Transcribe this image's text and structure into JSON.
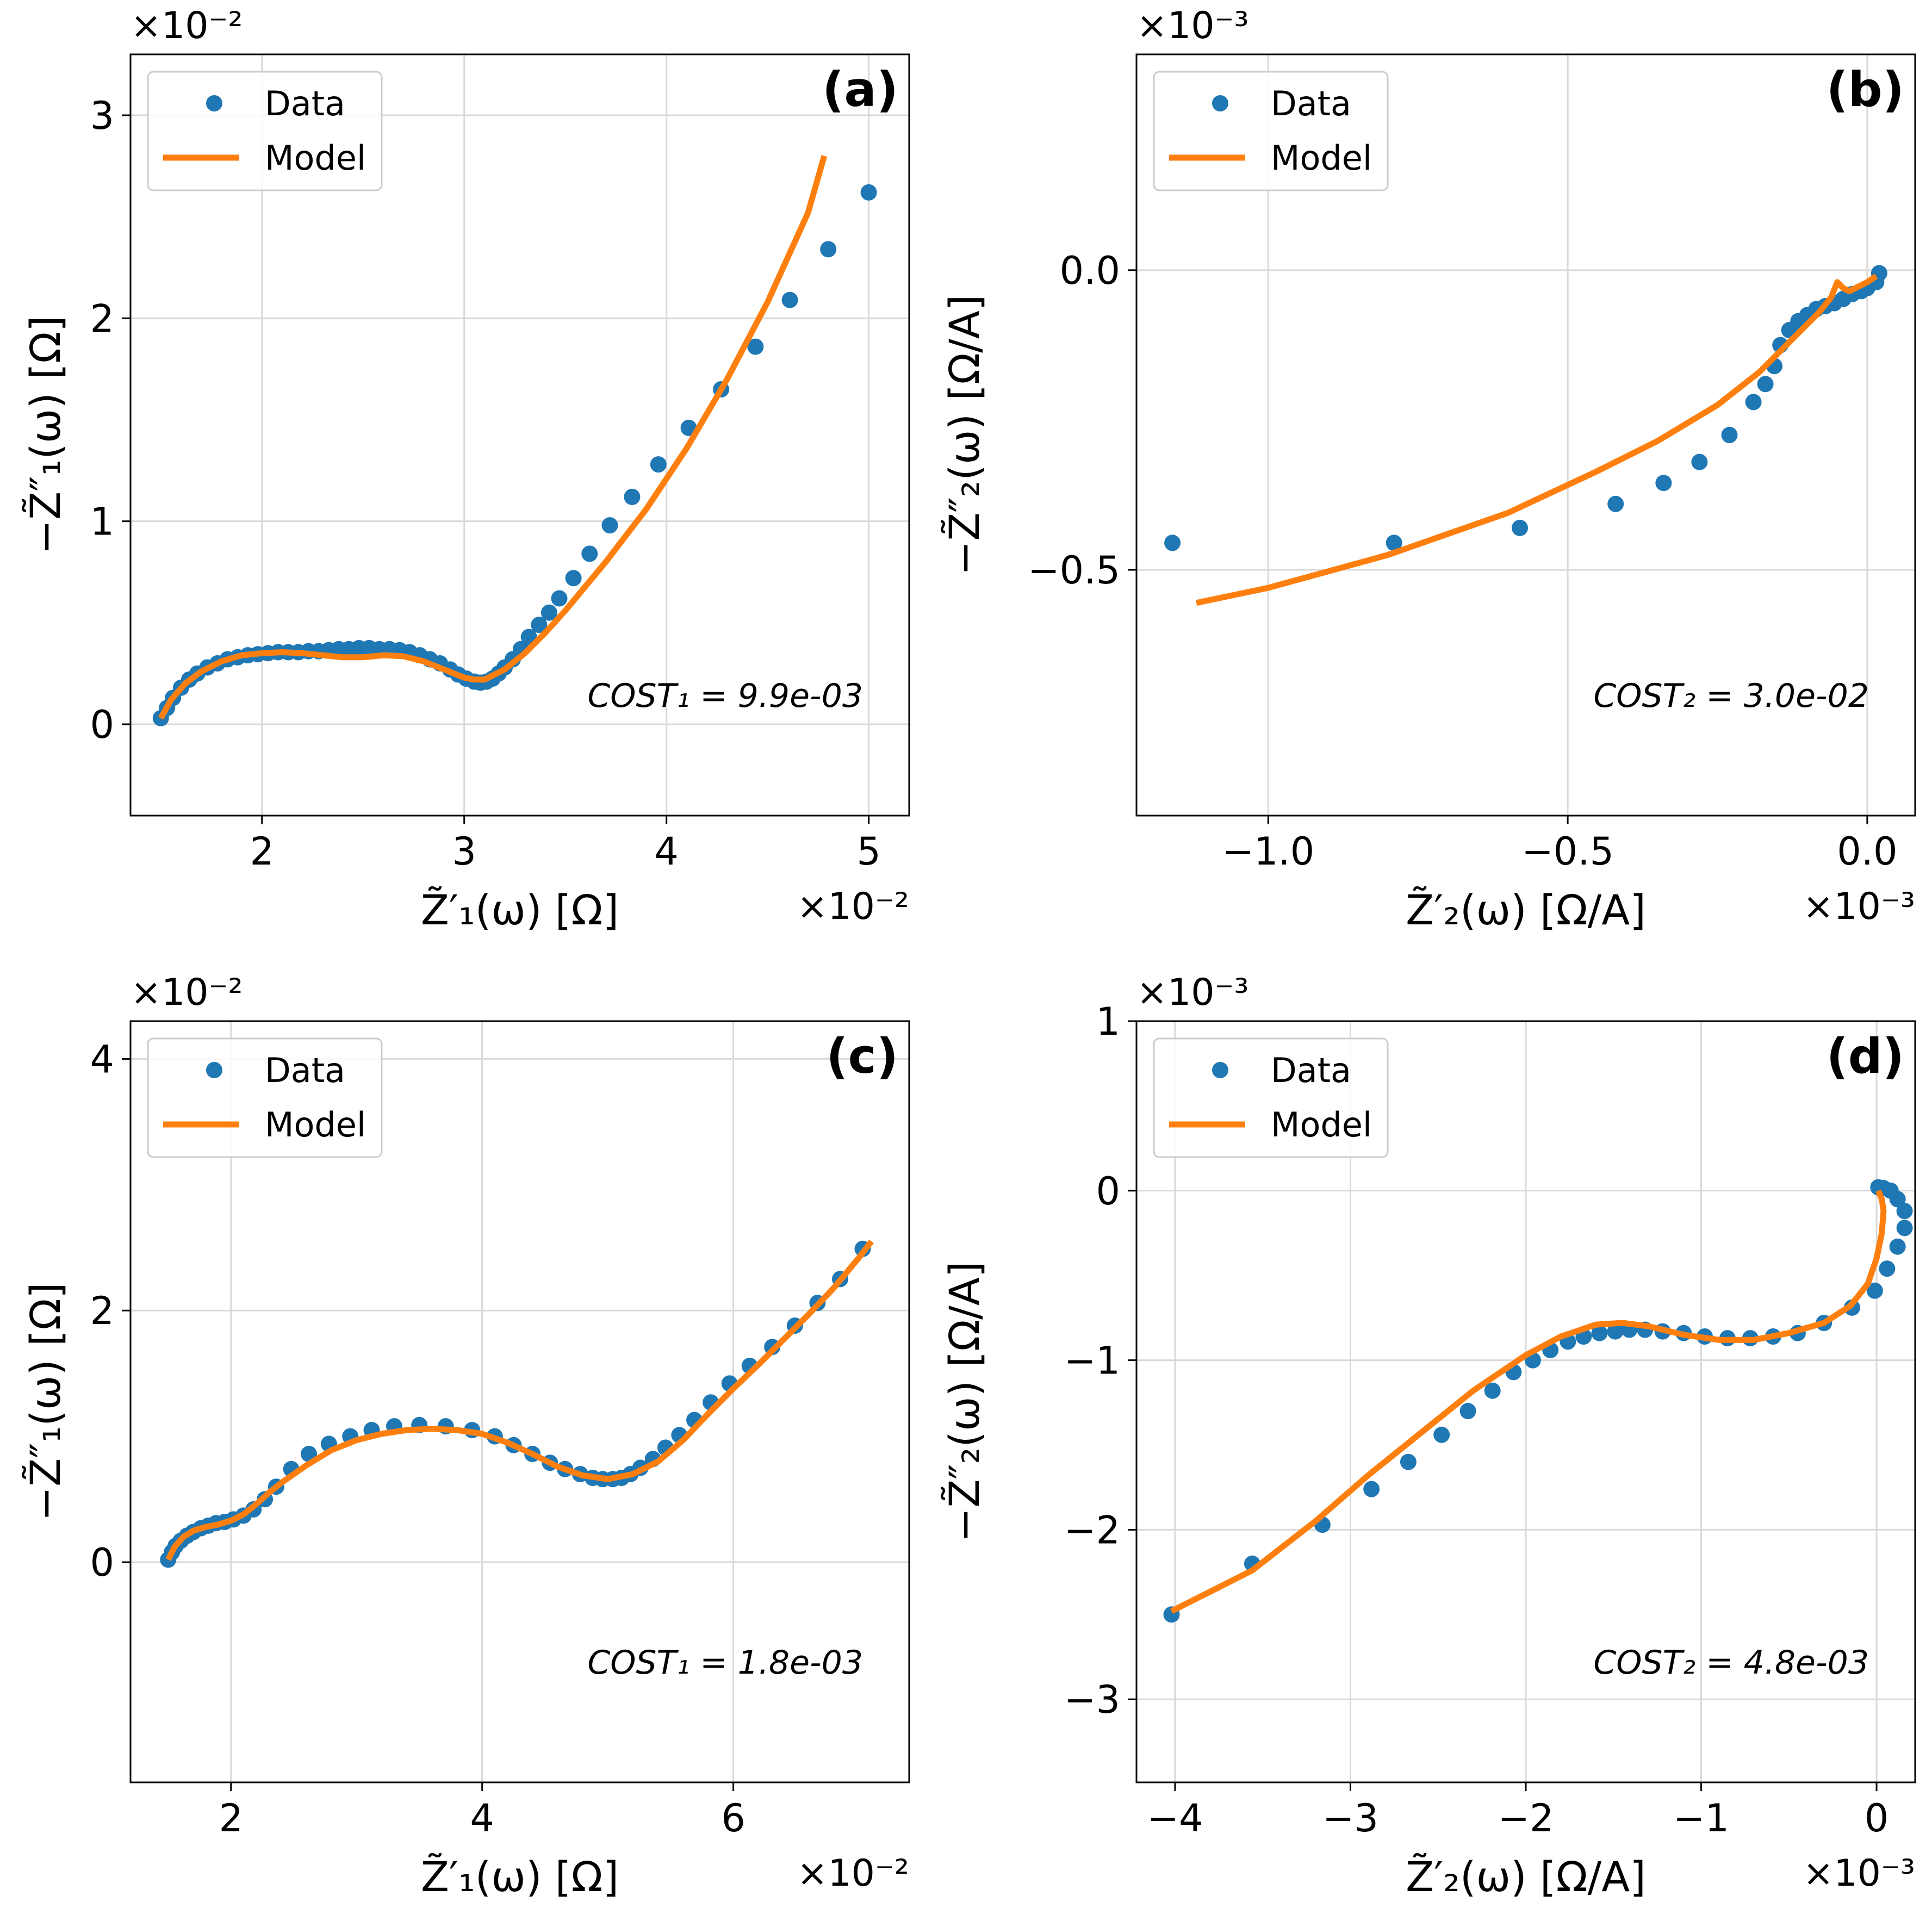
{
  "legend": {
    "data_label": "Data",
    "model_label": "Model"
  },
  "colors": {
    "data": "#1f77b4",
    "model": "#ff7f0e",
    "grid": "#d9d9d9",
    "axis": "#000000"
  },
  "chart_data": [
    {
      "type": "scatter",
      "panel_label": "(a)",
      "cost_text": "COST₁ = 9.9e-03",
      "xlabel": "Z̃′₁(ω) [Ω]",
      "ylabel": "−Z̃″₁(ω) [Ω]",
      "x_exponent_label": "×10⁻²",
      "y_exponent_label": "×10⁻²",
      "xlim": [
        1.35,
        5.2
      ],
      "ylim": [
        -0.45,
        3.3
      ],
      "xticks": [
        2,
        3,
        4,
        5
      ],
      "xtick_labels": [
        "2",
        "3",
        "4",
        "5"
      ],
      "yticks": [
        0,
        1,
        2,
        3
      ],
      "ytick_labels": [
        "0",
        "1",
        "2",
        "3"
      ],
      "grid": true,
      "legend_position": "top-left",
      "series": [
        {
          "name": "Data",
          "kind": "points",
          "x": [
            1.5,
            1.53,
            1.56,
            1.6,
            1.64,
            1.68,
            1.73,
            1.78,
            1.83,
            1.88,
            1.93,
            1.98,
            2.03,
            2.08,
            2.13,
            2.18,
            2.23,
            2.28,
            2.33,
            2.38,
            2.43,
            2.48,
            2.53,
            2.58,
            2.63,
            2.68,
            2.73,
            2.78,
            2.83,
            2.88,
            2.93,
            2.97,
            3.01,
            3.05,
            3.08,
            3.11,
            3.14,
            3.17,
            3.2,
            3.24,
            3.28,
            3.32,
            3.37,
            3.42,
            3.47,
            3.54,
            3.62,
            3.72,
            3.83,
            3.96,
            4.11,
            4.27,
            4.44,
            4.61,
            4.8,
            5.0
          ],
          "y": [
            0.03,
            0.08,
            0.13,
            0.18,
            0.22,
            0.25,
            0.28,
            0.3,
            0.32,
            0.33,
            0.34,
            0.345,
            0.35,
            0.355,
            0.355,
            0.355,
            0.36,
            0.36,
            0.365,
            0.37,
            0.37,
            0.375,
            0.375,
            0.37,
            0.37,
            0.365,
            0.355,
            0.34,
            0.32,
            0.3,
            0.27,
            0.245,
            0.225,
            0.21,
            0.205,
            0.21,
            0.225,
            0.25,
            0.28,
            0.32,
            0.37,
            0.43,
            0.49,
            0.55,
            0.62,
            0.72,
            0.84,
            0.98,
            1.12,
            1.28,
            1.46,
            1.65,
            1.86,
            2.09,
            2.34,
            2.62
          ]
        },
        {
          "name": "Model",
          "kind": "line",
          "x": [
            1.5,
            1.55,
            1.62,
            1.7,
            1.8,
            1.9,
            2.0,
            2.1,
            2.2,
            2.3,
            2.4,
            2.5,
            2.6,
            2.7,
            2.8,
            2.9,
            3.0,
            3.05,
            3.1,
            3.2,
            3.3,
            3.4,
            3.5,
            3.7,
            3.9,
            4.1,
            4.3,
            4.5,
            4.7,
            4.78
          ],
          "y": [
            0.03,
            0.12,
            0.2,
            0.26,
            0.31,
            0.34,
            0.35,
            0.355,
            0.35,
            0.34,
            0.33,
            0.33,
            0.34,
            0.335,
            0.31,
            0.27,
            0.23,
            0.22,
            0.22,
            0.27,
            0.35,
            0.45,
            0.56,
            0.8,
            1.06,
            1.36,
            1.7,
            2.08,
            2.52,
            2.8
          ]
        }
      ]
    },
    {
      "type": "scatter",
      "panel_label": "(b)",
      "cost_text": "COST₂ = 3.0e-02",
      "xlabel": "Z̃′₂(ω) [Ω/A]",
      "ylabel": "−Z̃″₂(ω) [Ω/A]",
      "x_exponent_label": "×10⁻³",
      "y_exponent_label": "×10⁻³",
      "xlim": [
        -1.22,
        0.08
      ],
      "ylim": [
        -0.91,
        0.36
      ],
      "xticks": [
        -1.0,
        -0.5,
        0.0
      ],
      "xtick_labels": [
        "−1.0",
        "−0.5",
        "0.0"
      ],
      "yticks": [
        -0.5,
        0.0
      ],
      "ytick_labels": [
        "−0.5",
        "0.0"
      ],
      "grid": true,
      "legend_position": "top-left",
      "series": [
        {
          "name": "Data",
          "kind": "points",
          "x": [
            -1.16,
            -0.79,
            -0.58,
            -0.42,
            -0.34,
            -0.28,
            -0.23,
            -0.19,
            -0.17,
            -0.155,
            -0.145,
            -0.13,
            -0.115,
            -0.1,
            -0.085,
            -0.07,
            -0.055,
            -0.04,
            -0.025,
            -0.01,
            0.0,
            0.015,
            0.02
          ],
          "y": [
            -0.455,
            -0.455,
            -0.43,
            -0.39,
            -0.355,
            -0.32,
            -0.275,
            -0.22,
            -0.19,
            -0.16,
            -0.125,
            -0.1,
            -0.085,
            -0.075,
            -0.065,
            -0.06,
            -0.055,
            -0.048,
            -0.04,
            -0.035,
            -0.03,
            -0.02,
            -0.005
          ]
        },
        {
          "name": "Model",
          "kind": "line",
          "x": [
            -1.12,
            -1.0,
            -0.8,
            -0.6,
            -0.45,
            -0.35,
            -0.25,
            -0.18,
            -0.12,
            -0.08,
            -0.06,
            -0.05,
            -0.04,
            -0.03,
            -0.02,
            -0.01,
            0.0,
            0.015
          ],
          "y": [
            -0.555,
            -0.53,
            -0.475,
            -0.405,
            -0.335,
            -0.285,
            -0.225,
            -0.17,
            -0.11,
            -0.07,
            -0.045,
            -0.02,
            -0.03,
            -0.035,
            -0.03,
            -0.025,
            -0.02,
            -0.01
          ]
        }
      ]
    },
    {
      "type": "scatter",
      "panel_label": "(c)",
      "cost_text": "COST₁ = 1.8e-03",
      "xlabel": "Z̃′₁(ω) [Ω]",
      "ylabel": "−Z̃″₁(ω) [Ω]",
      "x_exponent_label": "×10⁻²",
      "y_exponent_label": "×10⁻²",
      "xlim": [
        1.2,
        7.4
      ],
      "ylim": [
        -1.75,
        4.3
      ],
      "xticks": [
        2,
        4,
        6
      ],
      "xtick_labels": [
        "2",
        "4",
        "6"
      ],
      "yticks": [
        0,
        2,
        4
      ],
      "ytick_labels": [
        "0",
        "2",
        "4"
      ],
      "grid": true,
      "legend_position": "top-left",
      "series": [
        {
          "name": "Data",
          "kind": "points",
          "x": [
            1.5,
            1.53,
            1.56,
            1.6,
            1.65,
            1.7,
            1.76,
            1.82,
            1.88,
            1.95,
            2.02,
            2.1,
            2.18,
            2.27,
            2.36,
            2.48,
            2.62,
            2.78,
            2.95,
            3.12,
            3.3,
            3.5,
            3.71,
            3.92,
            4.1,
            4.25,
            4.4,
            4.54,
            4.66,
            4.78,
            4.88,
            4.96,
            5.04,
            5.11,
            5.18,
            5.26,
            5.36,
            5.46,
            5.57,
            5.69,
            5.82,
            5.97,
            6.13,
            6.31,
            6.49,
            6.67,
            6.85,
            7.03
          ],
          "y": [
            0.02,
            0.08,
            0.13,
            0.17,
            0.21,
            0.24,
            0.27,
            0.29,
            0.31,
            0.32,
            0.34,
            0.37,
            0.42,
            0.5,
            0.6,
            0.74,
            0.86,
            0.94,
            1.0,
            1.05,
            1.08,
            1.09,
            1.08,
            1.05,
            1.0,
            0.93,
            0.86,
            0.79,
            0.74,
            0.7,
            0.67,
            0.66,
            0.66,
            0.67,
            0.7,
            0.75,
            0.82,
            0.91,
            1.01,
            1.13,
            1.27,
            1.42,
            1.56,
            1.71,
            1.88,
            2.06,
            2.25,
            2.49
          ]
        },
        {
          "name": "Model",
          "kind": "line",
          "x": [
            1.5,
            1.55,
            1.62,
            1.7,
            1.8,
            1.9,
            2.0,
            2.1,
            2.2,
            2.3,
            2.4,
            2.6,
            2.8,
            3.0,
            3.2,
            3.4,
            3.6,
            3.8,
            4.0,
            4.2,
            4.4,
            4.6,
            4.8,
            5.0,
            5.2,
            5.4,
            5.6,
            5.8,
            6.0,
            6.2,
            6.4,
            6.6,
            6.8,
            7.0,
            7.1
          ],
          "y": [
            0.02,
            0.12,
            0.2,
            0.25,
            0.28,
            0.3,
            0.33,
            0.38,
            0.46,
            0.55,
            0.63,
            0.77,
            0.89,
            0.97,
            1.02,
            1.05,
            1.06,
            1.05,
            1.02,
            0.95,
            0.86,
            0.76,
            0.69,
            0.66,
            0.7,
            0.8,
            0.97,
            1.18,
            1.38,
            1.57,
            1.77,
            1.97,
            2.18,
            2.42,
            2.55
          ]
        }
      ]
    },
    {
      "type": "scatter",
      "panel_label": "(d)",
      "cost_text": "COST₂ = 4.8e-03",
      "xlabel": "Z̃′₂(ω) [Ω/A]",
      "ylabel": "−Z̃″₂(ω) [Ω/A]",
      "x_exponent_label": "×10⁻³",
      "y_exponent_label": "×10⁻³",
      "xlim": [
        -4.22,
        0.22
      ],
      "ylim": [
        -3.49,
        1.0
      ],
      "xticks": [
        -4,
        -3,
        -2,
        -1,
        0
      ],
      "xtick_labels": [
        "−4",
        "−3",
        "−2",
        "−1",
        "0"
      ],
      "yticks": [
        -3,
        -2,
        -1,
        0,
        1
      ],
      "ytick_labels": [
        "−3",
        "−2",
        "−1",
        "0",
        "1"
      ],
      "grid": true,
      "legend_position": "top-left",
      "series": [
        {
          "name": "Data",
          "kind": "points",
          "x": [
            -4.02,
            -3.56,
            -3.16,
            -2.88,
            -2.67,
            -2.48,
            -2.33,
            -2.19,
            -2.07,
            -1.96,
            -1.86,
            -1.76,
            -1.67,
            -1.58,
            -1.49,
            -1.41,
            -1.32,
            -1.22,
            -1.1,
            -0.98,
            -0.85,
            -0.72,
            -0.59,
            -0.45,
            -0.3,
            -0.14,
            -0.01,
            0.06,
            0.12,
            0.16,
            0.16,
            0.12,
            0.08,
            0.04,
            0.01
          ],
          "y": [
            -2.5,
            -2.2,
            -1.97,
            -1.76,
            -1.6,
            -1.44,
            -1.3,
            -1.18,
            -1.07,
            -1.0,
            -0.94,
            -0.89,
            -0.86,
            -0.84,
            -0.83,
            -0.82,
            -0.82,
            -0.83,
            -0.84,
            -0.86,
            -0.87,
            -0.87,
            -0.86,
            -0.84,
            -0.78,
            -0.69,
            -0.59,
            -0.46,
            -0.33,
            -0.22,
            -0.12,
            -0.05,
            0.0,
            0.015,
            0.02
          ]
        },
        {
          "name": "Model",
          "kind": "line",
          "x": [
            -4.02,
            -3.56,
            -3.2,
            -2.9,
            -2.6,
            -2.3,
            -2.0,
            -1.8,
            -1.6,
            -1.45,
            -1.3,
            -1.1,
            -0.9,
            -0.7,
            -0.5,
            -0.3,
            -0.15,
            -0.05,
            0.0,
            0.03,
            0.04,
            0.03,
            0.01
          ],
          "y": [
            -2.48,
            -2.24,
            -1.95,
            -1.68,
            -1.43,
            -1.18,
            -0.97,
            -0.86,
            -0.79,
            -0.78,
            -0.8,
            -0.85,
            -0.88,
            -0.88,
            -0.84,
            -0.78,
            -0.68,
            -0.55,
            -0.4,
            -0.25,
            -0.12,
            -0.05,
            0.0
          ]
        }
      ]
    }
  ]
}
